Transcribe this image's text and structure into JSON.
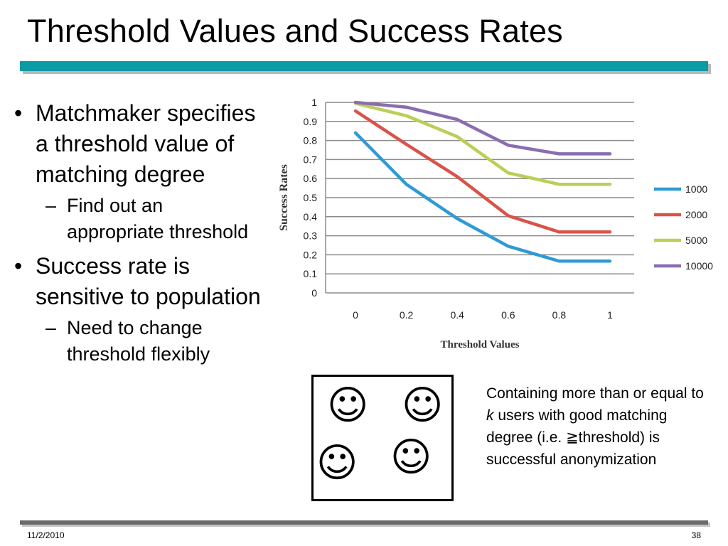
{
  "title": "Threshold Values and Success Rates",
  "bullets": [
    {
      "text": "Matchmaker specifies a threshold value of matching degree",
      "sub": "Find out an appropriate threshold"
    },
    {
      "text": "Success rate is sensitive to population",
      "sub": "Need to change threshold flexibly"
    }
  ],
  "bullet_mark": "•",
  "sub_mark": "–",
  "smiley_glyph": "☺",
  "note": {
    "part1": "Containing more than or equal to ",
    "k": "k",
    "part2": " users with good matching degree (i.e. ≧threshold)  is successful anonymization"
  },
  "footer": {
    "date": "11/2/2010",
    "page": "38"
  },
  "chart_data": {
    "type": "line",
    "title": "",
    "xlabel": "Threshold Values",
    "ylabel": "Success Rates",
    "x": [
      0,
      0.2,
      0.4,
      0.6,
      0.8,
      1
    ],
    "x_tick_labels": [
      "0",
      "0.2",
      "0.4",
      "0.6",
      "0.8",
      "1"
    ],
    "y_ticks": [
      0,
      0.1,
      0.2,
      0.3,
      0.4,
      0.5,
      0.6,
      0.7,
      0.8,
      0.9,
      1
    ],
    "y_tick_labels": [
      "0",
      "0.1",
      "0.2",
      "0.3",
      "0.4",
      "0.5",
      "0.6",
      "0.7",
      "0.8",
      "0.9",
      "1"
    ],
    "ylim": [
      0,
      1
    ],
    "grid": true,
    "legend_position": "right",
    "series": [
      {
        "name": "1000",
        "color": "#2f9ad4",
        "values": [
          0.84,
          0.57,
          0.39,
          0.245,
          0.167,
          0.167
        ]
      },
      {
        "name": "2000",
        "color": "#d9534a",
        "values": [
          0.955,
          0.78,
          0.61,
          0.405,
          0.32,
          0.32
        ]
      },
      {
        "name": "5000",
        "color": "#b9cf56",
        "values": [
          0.995,
          0.93,
          0.82,
          0.63,
          0.57,
          0.57
        ]
      },
      {
        "name": "10000",
        "color": "#8a6db0",
        "values": [
          1.0,
          0.975,
          0.91,
          0.775,
          0.73,
          0.73
        ]
      }
    ]
  }
}
